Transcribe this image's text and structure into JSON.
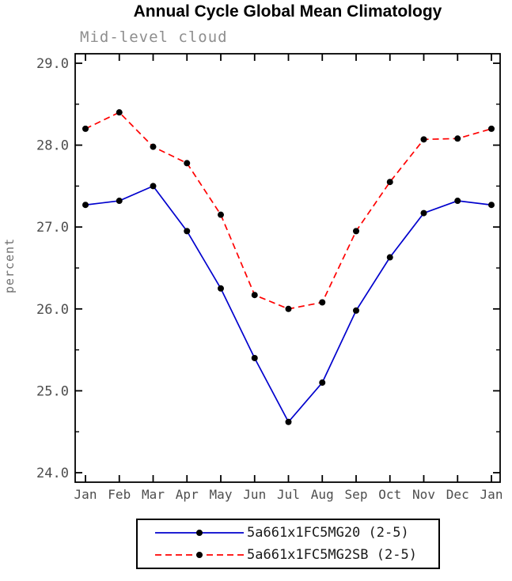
{
  "chart_data": {
    "type": "line",
    "title": "Annual Cycle Global Mean Climatology",
    "subtitle": "Mid-level cloud",
    "xlabel": "",
    "ylabel": "percent",
    "x_ticks": [
      "Jan",
      "Feb",
      "Mar",
      "Apr",
      "May",
      "Jun",
      "Jul",
      "Aug",
      "Sep",
      "Oct",
      "Nov",
      "Dec",
      "Jan"
    ],
    "ylim": [
      24.0,
      29.0
    ],
    "y_ticks": [
      24.0,
      25.0,
      26.0,
      27.0,
      28.0,
      29.0
    ],
    "y_tick_labels": [
      "24.0",
      "25.0",
      "26.0",
      "27.0",
      "28.0",
      "29.0"
    ],
    "y_minor_step": 0.5,
    "grid": false,
    "legend_position": "bottom",
    "series": [
      {
        "name": "5a661x1FC5MG20 (2-5)",
        "color": "#0000cd",
        "style": "solid",
        "marker": "circle",
        "marker_color": "#000000",
        "values": [
          27.27,
          27.32,
          27.5,
          26.95,
          26.25,
          25.4,
          24.62,
          25.1,
          25.98,
          26.63,
          27.17,
          27.32,
          27.27
        ]
      },
      {
        "name": "5a661x1FC5MG2SB (2-5)",
        "color": "#ff0000",
        "style": "dashed",
        "marker": "circle",
        "marker_color": "#000000",
        "values": [
          28.2,
          28.4,
          27.98,
          27.78,
          27.15,
          26.17,
          26.0,
          26.08,
          26.95,
          27.55,
          28.07,
          28.08,
          28.2
        ]
      }
    ]
  }
}
